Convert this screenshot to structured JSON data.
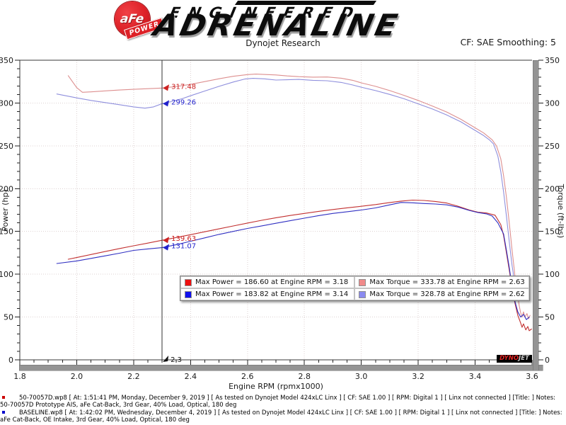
{
  "header": {
    "logo_circle_text": "aFe",
    "logo_reg": "®",
    "logo_ribbon_text": "POWER",
    "brand_small": "ENGINEERED",
    "brand_large": "ADRENALINE",
    "subtitle": "Dynojet Research",
    "smoothing_label": "CF: SAE Smoothing: 5"
  },
  "chart_data": {
    "type": "line",
    "xlabel": "Engine RPM (rpmx1000)",
    "ylabel_left": "Power (hp)",
    "ylabel_right": "Torque (ft-lbs)",
    "xlim": [
      1.8,
      3.6
    ],
    "ylim": [
      0,
      350
    ],
    "x_major_step": 0.2,
    "x_minor_step": 0.05,
    "y_major_step": 50,
    "y_minor_step": 10,
    "grid": true,
    "cursor": {
      "x": 2.3,
      "label": "2.3",
      "readouts": [
        {
          "value": 317.48,
          "text": "317.48",
          "color": "#cc2222"
        },
        {
          "value": 299.26,
          "text": "299.26",
          "color": "#2222cc"
        },
        {
          "value": 139.63,
          "text": "139.63",
          "color": "#cc2222"
        },
        {
          "value": 131.07,
          "text": "131.07",
          "color": "#2222cc"
        }
      ]
    },
    "series": [
      {
        "name": "torque-afe",
        "color": "#dd8f8f",
        "width": 1.1,
        "points": [
          [
            1.97,
            332
          ],
          [
            2.0,
            318
          ],
          [
            2.02,
            312.5
          ],
          [
            2.05,
            313
          ],
          [
            2.1,
            314.2
          ],
          [
            2.15,
            315.2
          ],
          [
            2.2,
            316
          ],
          [
            2.25,
            316.7
          ],
          [
            2.3,
            317.48
          ],
          [
            2.35,
            319.3
          ],
          [
            2.4,
            321.8
          ],
          [
            2.45,
            325
          ],
          [
            2.5,
            328.3
          ],
          [
            2.55,
            331.2
          ],
          [
            2.6,
            333.2
          ],
          [
            2.63,
            333.78
          ],
          [
            2.67,
            333.2
          ],
          [
            2.7,
            332.8
          ],
          [
            2.74,
            331.6
          ],
          [
            2.78,
            330.8
          ],
          [
            2.83,
            330.2
          ],
          [
            2.88,
            330.4
          ],
          [
            2.93,
            329
          ],
          [
            2.97,
            326.5
          ],
          [
            3.0,
            323.5
          ],
          [
            3.05,
            319.5
          ],
          [
            3.1,
            314.5
          ],
          [
            3.15,
            309
          ],
          [
            3.2,
            303
          ],
          [
            3.25,
            296.5
          ],
          [
            3.3,
            289.5
          ],
          [
            3.35,
            281
          ],
          [
            3.4,
            271
          ],
          [
            3.43,
            265
          ],
          [
            3.46,
            257
          ],
          [
            3.475,
            250
          ],
          [
            3.49,
            235
          ],
          [
            3.5,
            215
          ],
          [
            3.51,
            190
          ],
          [
            3.52,
            160
          ],
          [
            3.53,
            128
          ],
          [
            3.54,
            98
          ],
          [
            3.55,
            75
          ],
          [
            3.555,
            63
          ],
          [
            3.56,
            55
          ],
          [
            3.565,
            50
          ],
          [
            3.57,
            56
          ],
          [
            3.575,
            50
          ],
          [
            3.582,
            54
          ],
          [
            3.588,
            48
          ],
          [
            3.593,
            52
          ]
        ]
      },
      {
        "name": "torque-baseline",
        "color": "#8f8fdd",
        "width": 1.1,
        "points": [
          [
            1.93,
            310.5
          ],
          [
            2.0,
            306
          ],
          [
            2.05,
            303
          ],
          [
            2.1,
            300.5
          ],
          [
            2.15,
            298
          ],
          [
            2.2,
            295.5
          ],
          [
            2.24,
            294
          ],
          [
            2.27,
            295.5
          ],
          [
            2.3,
            299.26
          ],
          [
            2.33,
            301.5
          ],
          [
            2.37,
            305
          ],
          [
            2.4,
            308.5
          ],
          [
            2.45,
            314
          ],
          [
            2.5,
            319.5
          ],
          [
            2.55,
            324.5
          ],
          [
            2.59,
            328
          ],
          [
            2.62,
            328.78
          ],
          [
            2.66,
            328.2
          ],
          [
            2.7,
            326.8
          ],
          [
            2.74,
            327.2
          ],
          [
            2.78,
            327.6
          ],
          [
            2.83,
            326.5
          ],
          [
            2.88,
            326
          ],
          [
            2.93,
            324
          ],
          [
            2.97,
            321
          ],
          [
            3.0,
            318.5
          ],
          [
            3.05,
            314.5
          ],
          [
            3.1,
            310
          ],
          [
            3.15,
            305
          ],
          [
            3.2,
            299
          ],
          [
            3.25,
            293
          ],
          [
            3.3,
            286
          ],
          [
            3.35,
            278
          ],
          [
            3.4,
            268
          ],
          [
            3.43,
            262
          ],
          [
            3.45,
            257
          ],
          [
            3.465,
            252
          ],
          [
            3.48,
            238
          ],
          [
            3.49,
            220
          ],
          [
            3.5,
            196
          ],
          [
            3.51,
            168
          ],
          [
            3.52,
            138
          ],
          [
            3.53,
            110
          ],
          [
            3.54,
            88
          ],
          [
            3.55,
            78
          ],
          [
            3.555,
            80
          ],
          [
            3.56,
            76
          ]
        ]
      },
      {
        "name": "power-afe",
        "color": "#c23030",
        "width": 1.1,
        "points": [
          [
            1.97,
            117.5
          ],
          [
            2.0,
            119.5
          ],
          [
            2.05,
            123
          ],
          [
            2.1,
            126.5
          ],
          [
            2.15,
            130
          ],
          [
            2.2,
            133.2
          ],
          [
            2.25,
            136.4
          ],
          [
            2.3,
            139.63
          ],
          [
            2.35,
            142.9
          ],
          [
            2.4,
            146.2
          ],
          [
            2.45,
            149.6
          ],
          [
            2.5,
            153
          ],
          [
            2.55,
            156.4
          ],
          [
            2.6,
            159.8
          ],
          [
            2.65,
            163
          ],
          [
            2.7,
            166
          ],
          [
            2.75,
            168.6
          ],
          [
            2.8,
            171
          ],
          [
            2.85,
            173.4
          ],
          [
            2.9,
            175.6
          ],
          [
            2.95,
            177.6
          ],
          [
            3.0,
            179.4
          ],
          [
            3.05,
            181.4
          ],
          [
            3.1,
            183.8
          ],
          [
            3.14,
            185.4
          ],
          [
            3.18,
            186.6
          ],
          [
            3.22,
            186.2
          ],
          [
            3.26,
            185
          ],
          [
            3.3,
            183.2
          ],
          [
            3.34,
            179.5
          ],
          [
            3.38,
            175
          ],
          [
            3.41,
            172.5
          ],
          [
            3.44,
            171.5
          ],
          [
            3.47,
            169
          ],
          [
            3.49,
            158
          ],
          [
            3.5,
            145
          ],
          [
            3.51,
            125
          ],
          [
            3.52,
            105
          ],
          [
            3.53,
            83
          ],
          [
            3.54,
            66
          ],
          [
            3.55,
            52
          ],
          [
            3.56,
            43
          ],
          [
            3.565,
            38
          ],
          [
            3.57,
            42
          ],
          [
            3.578,
            35
          ],
          [
            3.585,
            39
          ],
          [
            3.59,
            34
          ],
          [
            3.598,
            36
          ]
        ]
      },
      {
        "name": "power-baseline",
        "color": "#3030c2",
        "width": 1.1,
        "points": [
          [
            1.93,
            112.5
          ],
          [
            2.0,
            115.5
          ],
          [
            2.05,
            118.5
          ],
          [
            2.1,
            121.5
          ],
          [
            2.15,
            124.5
          ],
          [
            2.2,
            127.8
          ],
          [
            2.25,
            129.6
          ],
          [
            2.3,
            131.07
          ],
          [
            2.35,
            134.5
          ],
          [
            2.4,
            138.5
          ],
          [
            2.45,
            142.5
          ],
          [
            2.5,
            146.5
          ],
          [
            2.55,
            150
          ],
          [
            2.6,
            153.5
          ],
          [
            2.65,
            156.5
          ],
          [
            2.7,
            159.5
          ],
          [
            2.75,
            162.5
          ],
          [
            2.8,
            165.5
          ],
          [
            2.85,
            168.5
          ],
          [
            2.9,
            171
          ],
          [
            2.95,
            173
          ],
          [
            3.0,
            175
          ],
          [
            3.05,
            177.5
          ],
          [
            3.1,
            181
          ],
          [
            3.14,
            183.82
          ],
          [
            3.18,
            183.4
          ],
          [
            3.22,
            182.6
          ],
          [
            3.26,
            182
          ],
          [
            3.3,
            181
          ],
          [
            3.34,
            178.5
          ],
          [
            3.38,
            174.5
          ],
          [
            3.41,
            172
          ],
          [
            3.44,
            170.5
          ],
          [
            3.46,
            168
          ],
          [
            3.48,
            160
          ],
          [
            3.5,
            147
          ],
          [
            3.51,
            128
          ],
          [
            3.52,
            108
          ],
          [
            3.53,
            85
          ],
          [
            3.54,
            68
          ],
          [
            3.55,
            56
          ],
          [
            3.56,
            50
          ],
          [
            3.57,
            53
          ],
          [
            3.58,
            47
          ],
          [
            3.59,
            50
          ]
        ]
      }
    ],
    "legend": {
      "position": "bottom-center",
      "entries": [
        {
          "swatch": "#ee1010",
          "text": "Max Power = 186.60 at Engine RPM = 3.18"
        },
        {
          "swatch": "#f08a8a",
          "text": "Max Torque = 333.78 at Engine RPM = 2.63"
        },
        {
          "swatch": "#1010ee",
          "text": "Max Power = 183.82 at Engine RPM = 3.14"
        },
        {
          "swatch": "#8a8af0",
          "text": "Max Torque = 328.78 at Engine RPM = 2.62"
        }
      ]
    }
  },
  "watermark": {
    "dyno": "DYNO",
    "jet": "JET"
  },
  "footer": {
    "runs": [
      {
        "bullet_color": "#cc0000",
        "text": "50-70057D.wp8 [ At: 1:51:41 PM, Monday, December 9, 2019 ] [ As tested on Dynojet Model 424xLC Linx ] [ CF: SAE 1.00 ] [ RPM: Digital 1 ] [ Linx not connected ] [Title: ]  Notes: 50-70057D Prototype AIS, aFe Cat-Back, 3rd Gear, 40% Load, Optical, 180 deg"
      },
      {
        "bullet_color": "#0000cc",
        "text": "BASELINE.wp8 [ At: 1:42:02 PM, Wednesday, December 4, 2019 ] [ As tested on Dynojet Model 424xLC Linx ] [ CF: SAE 1.00 ] [ RPM: Digital 1 ] [ Linx not connected ] [Title: ]  Notes: aFe Cat-Back, OE Intake, 3rd Gear, 40% Load, Optical, 180 deg"
      }
    ]
  }
}
